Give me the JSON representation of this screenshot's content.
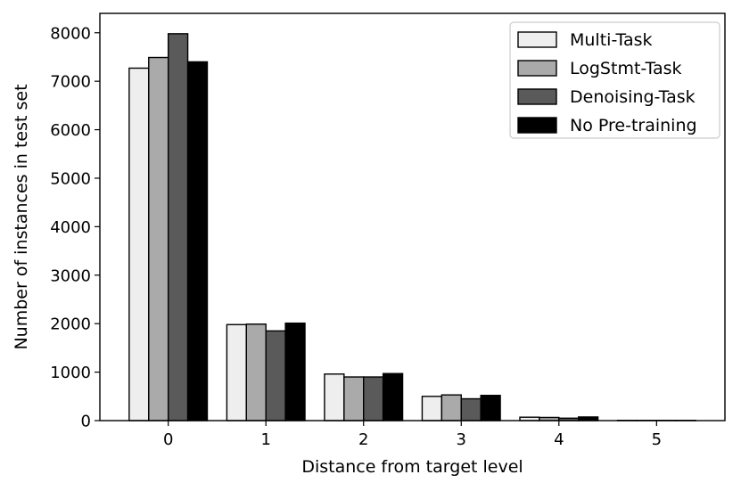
{
  "chart_data": {
    "type": "bar",
    "title": "",
    "xlabel": "Distance from target level",
    "ylabel": "Number of instances in test set",
    "categories": [
      "0",
      "1",
      "2",
      "3",
      "4",
      "5"
    ],
    "ylim": [
      0,
      8400
    ],
    "yticks": [
      "0",
      "1000",
      "2000",
      "3000",
      "4000",
      "5000",
      "6000",
      "7000",
      "8000"
    ],
    "grid": false,
    "legend_position": "top-right",
    "series": [
      {
        "name": "Multi-Task",
        "color": "#eeeeee",
        "values": [
          7270,
          1980,
          960,
          500,
          70,
          5
        ]
      },
      {
        "name": "LogStmt-Task",
        "color": "#aaaaaa",
        "values": [
          7490,
          1990,
          900,
          530,
          65,
          5
        ]
      },
      {
        "name": "Denoising-Task",
        "color": "#5a5a5a",
        "values": [
          7980,
          1850,
          900,
          450,
          50,
          5
        ]
      },
      {
        "name": "No Pre-training",
        "color": "#000000",
        "values": [
          7400,
          2010,
          970,
          520,
          75,
          5
        ]
      }
    ]
  }
}
